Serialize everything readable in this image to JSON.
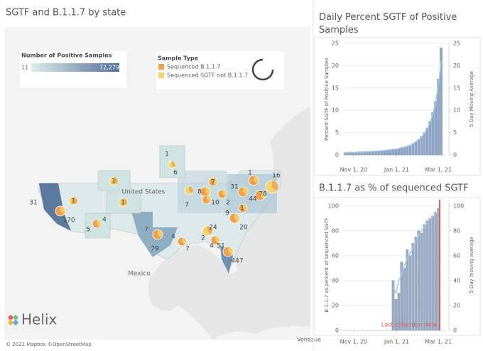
{
  "title": "SGTF and B.1.1.7 by state",
  "map": {
    "size_legend": {
      "title": "Number of Positive Samples",
      "min": "11",
      "max": "72,279"
    },
    "type_legend": {
      "title": "Sample Type",
      "items": [
        {
          "label": "Sequenced B.1.1.7",
          "color": "#f0a04b"
        },
        {
          "label": "Sequenced SGTF not B.1.1.7",
          "color": "#f2d36b"
        }
      ]
    },
    "place_labels": [
      "United States",
      "Mexico",
      "Venezue"
    ],
    "labels": [
      31,
      170,
      1,
      5,
      4,
      1,
      1,
      1,
      6,
      7,
      8,
      7,
      10,
      2,
      31,
      1,
      44,
      16,
      78,
      1,
      9,
      20,
      24,
      2,
      4,
      51,
      447,
      7,
      79,
      4,
      7
    ],
    "brand": "Helix",
    "credit": "© 2021 Mapbox ©OpenStreetMap"
  },
  "chart_data": [
    {
      "type": "bar",
      "title": "Daily Percent SGTF of Positive Samples",
      "ylabel": "Percent SGTF of Positive Samples",
      "y2label": "5 Day Moving Average",
      "x": [
        "2020-10-20",
        "2020-10-24",
        "2020-10-28",
        "2020-11-01",
        "2020-11-05",
        "2020-11-09",
        "2020-11-13",
        "2020-11-17",
        "2020-11-21",
        "2020-11-25",
        "2020-11-29",
        "2020-12-03",
        "2020-12-07",
        "2020-12-11",
        "2020-12-15",
        "2020-12-19",
        "2020-12-23",
        "2020-12-27",
        "2020-12-31",
        "2021-01-04",
        "2021-01-08",
        "2021-01-12",
        "2021-01-16",
        "2021-01-20",
        "2021-01-24",
        "2021-01-28",
        "2021-02-01",
        "2021-02-05",
        "2021-02-09",
        "2021-02-13",
        "2021-02-17",
        "2021-02-21",
        "2021-02-25",
        "2021-03-01",
        "2021-03-05"
      ],
      "xlim": [
        "2020-10-17",
        "2021-03-10"
      ],
      "xticks": [
        {
          "value": "2020-11-01",
          "label": "Nov 1, 20"
        },
        {
          "value": "2021-01-01",
          "label": "Jan 1, 21"
        },
        {
          "value": "2021-03-01",
          "label": "Mar 1, 21"
        }
      ],
      "ylim": [
        0,
        25
      ],
      "yticks": [
        0,
        5,
        10,
        15,
        20,
        25
      ],
      "y2lim": [
        0,
        25
      ],
      "y2ticks": [
        0,
        5,
        10,
        15,
        20,
        25
      ],
      "series": [
        {
          "color": "#8da6c8",
          "values": [
            0.5,
            0.6,
            0.6,
            0.5,
            0.6,
            0.7,
            0.6,
            0.7,
            0.8,
            0.7,
            0.8,
            0.9,
            0.8,
            1.0,
            1.0,
            1.1,
            1.2,
            1.3,
            1.2,
            1.5,
            1.7,
            1.8,
            2.0,
            2.2,
            2.6,
            3.0,
            3.5,
            4.2,
            5.0,
            6.0,
            7.5,
            9.5,
            12,
            17,
            24
          ]
        },
        {
          "color": "#a8cbe8",
          "axis": "y2",
          "style": "line",
          "values": [
            0.5,
            0.55,
            0.6,
            0.55,
            0.6,
            0.65,
            0.65,
            0.7,
            0.75,
            0.75,
            0.8,
            0.85,
            0.85,
            0.95,
            1.0,
            1.1,
            1.15,
            1.25,
            1.3,
            1.4,
            1.6,
            1.75,
            1.9,
            2.1,
            2.5,
            2.9,
            3.4,
            4.0,
            4.8,
            5.8,
            7.2,
            9.0,
            11.5,
            15.5,
            21
          ]
        }
      ]
    },
    {
      "type": "bar",
      "title": "B.1.1.7 as % of sequenced SGTF",
      "ylabel": "B.1.1.7 as percent of sequenced SGTF",
      "y2label": "5 Day moving average",
      "x": [
        "2020-10-20",
        "2020-10-24",
        "2020-10-28",
        "2020-11-01",
        "2020-11-05",
        "2020-11-09",
        "2020-11-13",
        "2020-11-17",
        "2020-11-21",
        "2020-11-25",
        "2020-11-29",
        "2020-12-03",
        "2020-12-07",
        "2020-12-11",
        "2020-12-15",
        "2020-12-19",
        "2020-12-23",
        "2020-12-27",
        "2020-12-31",
        "2021-01-04",
        "2021-01-08",
        "2021-01-12",
        "2021-01-16",
        "2021-01-20",
        "2021-01-24",
        "2021-01-28",
        "2021-02-01",
        "2021-02-05",
        "2021-02-09",
        "2021-02-13",
        "2021-02-17",
        "2021-02-21",
        "2021-02-25",
        "2021-03-01",
        "2021-03-05"
      ],
      "xlim": [
        "2020-10-17",
        "2021-03-10"
      ],
      "xticks": [
        {
          "value": "2020-11-01",
          "label": "Nov 1, 20"
        },
        {
          "value": "2021-01-01",
          "label": "Jan 1, 21"
        },
        {
          "value": "2021-03-01",
          "label": "Mar 1, 21"
        }
      ],
      "ylim": [
        0,
        105
      ],
      "yticks": [
        0,
        20,
        40,
        60,
        80,
        100
      ],
      "y2lim": [
        0,
        105
      ],
      "y2ticks": [
        0,
        20,
        40,
        60,
        80,
        100
      ],
      "reference": {
        "x": "2021-03-03",
        "label": "Last collection date",
        "color": "#d9625a"
      },
      "series": [
        {
          "color": "#9aabc3",
          "values": [
            null,
            null,
            null,
            null,
            null,
            null,
            null,
            null,
            null,
            null,
            null,
            null,
            null,
            null,
            null,
            null,
            null,
            40,
            25,
            30,
            55,
            50,
            65,
            60,
            70,
            75,
            80,
            78,
            85,
            88,
            90,
            92,
            95,
            98,
            null
          ]
        },
        {
          "color": "#a8cbe8",
          "axis": "y2",
          "style": "line",
          "values": [
            null,
            null,
            null,
            null,
            null,
            null,
            null,
            null,
            null,
            null,
            null,
            null,
            null,
            null,
            null,
            null,
            null,
            35,
            30,
            40,
            45,
            52,
            58,
            62,
            66,
            72,
            76,
            80,
            83,
            86,
            89,
            91,
            93,
            96,
            null
          ]
        }
      ]
    }
  ]
}
